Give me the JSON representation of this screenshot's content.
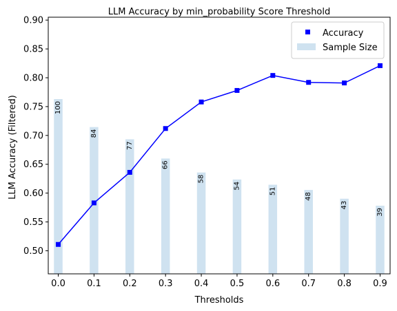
{
  "chart_data": {
    "type": "bar+line",
    "title": "LLM Accuracy by min_probability Score Threshold",
    "xlabel": "Thresholds",
    "ylabel": "LLM Accuracy (Filtered)",
    "x": [
      0.0,
      0.1,
      0.2,
      0.3,
      0.4,
      0.5,
      0.6,
      0.7,
      0.8,
      0.9
    ],
    "x_tick_labels": [
      "0.0",
      "0.1",
      "0.2",
      "0.3",
      "0.4",
      "0.5",
      "0.6",
      "0.7",
      "0.8",
      "0.9"
    ],
    "ylim": [
      0.46,
      0.905
    ],
    "y_ticks": [
      0.5,
      0.55,
      0.6,
      0.65,
      0.7,
      0.75,
      0.8,
      0.85,
      0.9
    ],
    "y_tick_labels": [
      "0.50",
      "0.55",
      "0.60",
      "0.65",
      "0.70",
      "0.75",
      "0.80",
      "0.85",
      "0.90"
    ],
    "series": [
      {
        "name": "Accuracy",
        "kind": "line",
        "color": "#0000ff",
        "values": [
          0.511,
          0.583,
          0.636,
          0.712,
          0.758,
          0.778,
          0.804,
          0.792,
          0.791,
          0.821
        ]
      },
      {
        "name": "Sample Size",
        "kind": "bar",
        "color": "#cfe2f0",
        "values": [
          100,
          84,
          77,
          66,
          58,
          54,
          51,
          48,
          43,
          39
        ],
        "labels": [
          "100",
          "84",
          "77",
          "66",
          "58",
          "54",
          "51",
          "48",
          "43",
          "39"
        ]
      }
    ],
    "legend": {
      "position": "top-right",
      "entries": [
        "Accuracy",
        "Sample Size"
      ]
    },
    "grid": false
  }
}
